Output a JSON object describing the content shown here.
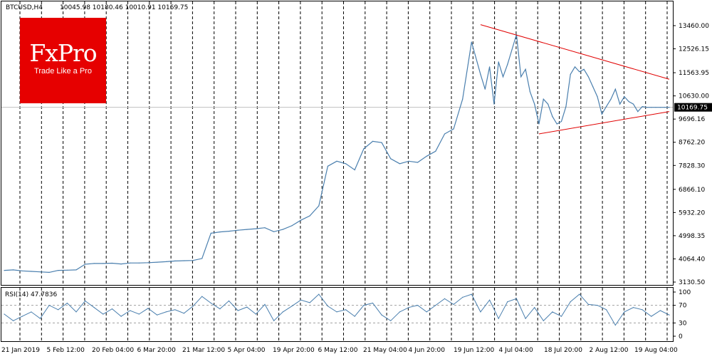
{
  "header": {
    "symbol_label": "BTCUSD,H4",
    "ohlc_label": "10045.98 10180.46 10010.91 10169.75"
  },
  "logo": {
    "brand": "FxPro",
    "tagline": "Trade Like a Pro"
  },
  "colors": {
    "price_line": "#4a7fae",
    "rsi_line": "#4a7fae",
    "trendline": "#e10000",
    "logo_red": "#e60000",
    "grid": "#000000",
    "price_tag_bg": "#000000"
  },
  "chart_data": [
    {
      "type": "line",
      "title": "",
      "symbol": "BTCUSD",
      "timeframe": "H4",
      "current_price": 10169.75,
      "current_price_label": "10169.75",
      "ylim": [
        3130.5,
        13460.0
      ],
      "y_ticks": [
        13460.0,
        12526.15,
        11563.95,
        10630.0,
        9696.16,
        8762.2,
        7828.3,
        6866.1,
        5932.2,
        4998.35,
        4064.4,
        3130.5
      ],
      "y_tick_labels": [
        "13460.00",
        "12526.15",
        "11563.95",
        "10630.00",
        "9696.16",
        "8762.20",
        "7828.30",
        "6866.10",
        "5932.20",
        "4998.35",
        "4064.40",
        "3130.50"
      ],
      "x_tick_labels": [
        "21 Jan 2019",
        "5 Feb 12:00",
        "20 Feb 04:00",
        "6 Mar 20:00",
        "21 Mar 12:00",
        "5 Apr 04:00",
        "19 Apr 20:00",
        "6 May 12:00",
        "21 May 04:00",
        "4 Jun 20:00",
        "19 Jun 12:00",
        "4 Jul 04:00",
        "18 Jul 20:00",
        "2 Aug 12:00",
        "19 Aug 04:00"
      ],
      "x_index_range": [
        0,
        148
      ],
      "series": [
        {
          "x": [
            0,
            2,
            4,
            6,
            8,
            10,
            12,
            14,
            16,
            18,
            20,
            22,
            24,
            26,
            28,
            30,
            32,
            34,
            36,
            38,
            40,
            42,
            44,
            46,
            48,
            50,
            52,
            54,
            56,
            58,
            60,
            62,
            64,
            66,
            68,
            70,
            72,
            74,
            76,
            78,
            80,
            82,
            84,
            86,
            88,
            90,
            92,
            94,
            96,
            98,
            100,
            102,
            104,
            106,
            107,
            108,
            109,
            110,
            111,
            112,
            113,
            114,
            115,
            116,
            117,
            118,
            119,
            120,
            121,
            122,
            123,
            124,
            125,
            126,
            127,
            128,
            129,
            130,
            131,
            132,
            133,
            134,
            135,
            136,
            137,
            138,
            139,
            140,
            141,
            142,
            143,
            144,
            145,
            146,
            147,
            148
          ],
          "values": [
            3600,
            3620,
            3580,
            3560,
            3540,
            3520,
            3600,
            3610,
            3620,
            3850,
            3880,
            3880,
            3890,
            3860,
            3900,
            3900,
            3910,
            3930,
            3950,
            3980,
            3990,
            4000,
            4080,
            5100,
            5150,
            5180,
            5220,
            5250,
            5280,
            5320,
            5160,
            5250,
            5400,
            5620,
            5800,
            6200,
            7800,
            8000,
            7900,
            7650,
            8500,
            8800,
            8750,
            8100,
            7900,
            8000,
            7950,
            8200,
            8400,
            9100,
            9300,
            10500,
            12800,
            11500,
            10900,
            11800,
            10300,
            12000,
            11400,
            11900,
            12500,
            13100,
            11400,
            11700,
            10800,
            10300,
            9500,
            10500,
            10300,
            9800,
            9500,
            9600,
            10200,
            11500,
            11800,
            11600,
            11700,
            11400,
            11000,
            10600,
            9900,
            10200,
            10500,
            10900,
            10300,
            10600,
            10400,
            10300,
            10000,
            10200,
            10169.75,
            10169.75,
            10169.75,
            10169.75,
            10169.75,
            10169.75
          ]
        }
      ],
      "trendlines": [
        {
          "x1": 106,
          "y1": 13500,
          "x2": 148,
          "y2": 11300
        },
        {
          "x1": 119,
          "y1": 9100,
          "x2": 148,
          "y2": 10000
        }
      ]
    },
    {
      "type": "line",
      "title": "RSI(14) 47.7836",
      "indicator": "RSI(14)",
      "current_value": 47.7836,
      "ylim": [
        0,
        100
      ],
      "y_ticks": [
        100,
        70,
        30,
        0
      ],
      "y_tick_labels": [
        "100",
        "70",
        "30",
        "0"
      ],
      "levels": [
        70,
        30
      ],
      "series": [
        {
          "x": [
            0,
            2,
            4,
            6,
            8,
            10,
            12,
            14,
            16,
            18,
            20,
            22,
            24,
            26,
            28,
            30,
            32,
            34,
            36,
            38,
            40,
            42,
            44,
            46,
            48,
            50,
            52,
            54,
            56,
            58,
            60,
            62,
            64,
            66,
            68,
            70,
            72,
            74,
            76,
            78,
            80,
            82,
            84,
            86,
            88,
            90,
            92,
            94,
            96,
            98,
            100,
            102,
            104,
            106,
            108,
            110,
            112,
            114,
            116,
            118,
            120,
            122,
            124,
            126,
            128,
            130,
            132,
            134,
            136,
            138,
            140,
            142,
            144,
            146,
            148
          ],
          "values": [
            50,
            35,
            45,
            55,
            40,
            70,
            60,
            75,
            55,
            80,
            65,
            50,
            62,
            45,
            58,
            50,
            63,
            48,
            55,
            60,
            52,
            68,
            90,
            75,
            62,
            80,
            58,
            66,
            50,
            72,
            35,
            55,
            68,
            82,
            76,
            95,
            68,
            55,
            60,
            45,
            70,
            75,
            48,
            35,
            55,
            65,
            70,
            55,
            70,
            85,
            72,
            88,
            95,
            55,
            82,
            40,
            78,
            85,
            40,
            65,
            35,
            55,
            45,
            78,
            95,
            72,
            70,
            60,
            25,
            55,
            65,
            60,
            45,
            58,
            48
          ]
        }
      ]
    }
  ]
}
